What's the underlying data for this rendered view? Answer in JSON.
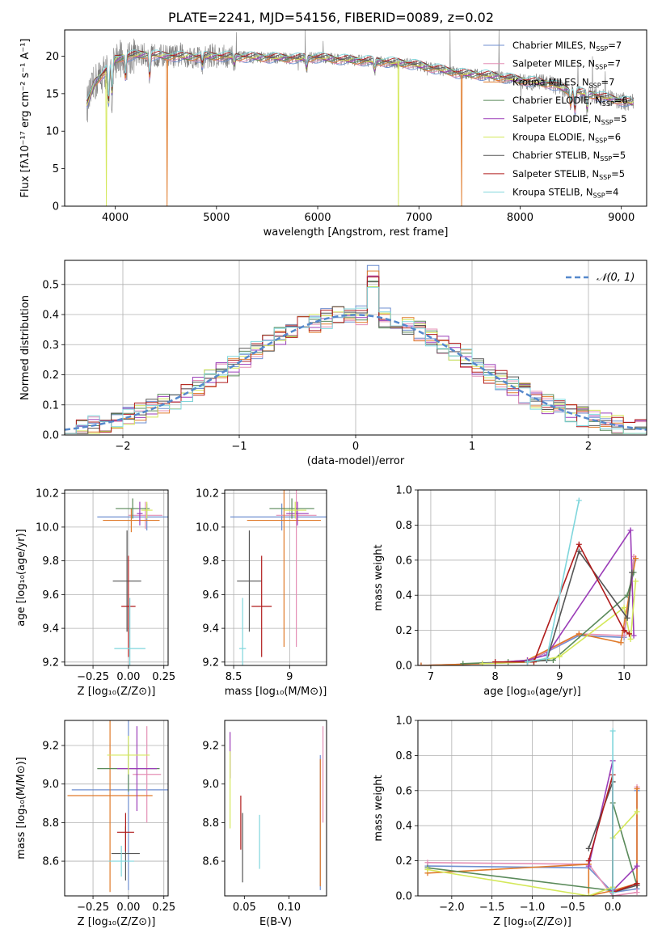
{
  "title": "PLATE=2241, MJD=54156, FIBERID=0089, z=0.02",
  "colors": {
    "Chabrier MILES": "#6f8fd0",
    "Salpeter MILES": "#e48fb5",
    "Kroupa MILES": "#e07b2b",
    "Chabrier ELODIE": "#5a8a5a",
    "Salpeter ELODIE": "#9b3db8",
    "Kroupa ELODIE": "#d4e85a",
    "Chabrier STELIB": "#555555",
    "Salpeter STELIB": "#b01c1c",
    "Kroupa STELIB": "#7fd6dc",
    "normal_curve": "#5588cc",
    "spectrum_data": "#7f7f7f"
  },
  "chart_data": [
    {
      "id": "spectrum",
      "type": "line",
      "xlabel": "wavelength [Angstrom, rest frame]",
      "ylabel": "Flux [fλ10⁻¹⁷ erg cm⁻² s⁻¹ A⁻¹]",
      "xlim": [
        3500,
        9250
      ],
      "ylim": [
        0,
        23.5
      ],
      "xticks": [
        4000,
        5000,
        6000,
        7000,
        8000,
        9000
      ],
      "yticks": [
        0,
        5,
        10,
        15,
        20
      ],
      "grid": false,
      "legend_position": "top-right",
      "legend": [
        {
          "label": "Chabrier MILES, N_SSP=7",
          "text": "Chabrier MILES, N",
          "sub": "SSP",
          "tail": "=7",
          "model": "Chabrier MILES"
        },
        {
          "label": "Salpeter MILES, N_SSP=7",
          "text": "Salpeter MILES, N",
          "sub": "SSP",
          "tail": "=7",
          "model": "Salpeter MILES"
        },
        {
          "label": "Kroupa MILES, N_SSP=7",
          "text": "Kroupa MILES, N",
          "sub": "SSP",
          "tail": "=7",
          "model": "Kroupa MILES"
        },
        {
          "label": "Chabrier ELODIE, N_SSP=6",
          "text": "Chabrier ELODIE, N",
          "sub": "SSP",
          "tail": "=6",
          "model": "Chabrier ELODIE"
        },
        {
          "label": "Salpeter ELODIE, N_SSP=5",
          "text": "Salpeter ELODIE, N",
          "sub": "SSP",
          "tail": "=5",
          "model": "Salpeter ELODIE"
        },
        {
          "label": "Kroupa ELODIE, N_SSP=6",
          "text": "Kroupa ELODIE, N",
          "sub": "SSP",
          "tail": "=6",
          "model": "Kroupa ELODIE"
        },
        {
          "label": "Chabrier STELIB, N_SSP=5",
          "text": "Chabrier STELIB, N",
          "sub": "SSP",
          "tail": "=5",
          "model": "Chabrier STELIB"
        },
        {
          "label": "Salpeter STELIB, N_SSP=5",
          "text": "Salpeter STELIB, N",
          "sub": "SSP",
          "tail": "=5",
          "model": "Salpeter STELIB"
        },
        {
          "label": "Kroupa STELIB, N_SSP=4",
          "text": "Kroupa STELIB, N",
          "sub": "SSP",
          "tail": "=4",
          "model": "Kroupa STELIB"
        }
      ],
      "continuum": {
        "x": [
          3720,
          3800,
          3900,
          4000,
          4100,
          4300,
          4500,
          4800,
          5000,
          5200,
          5500,
          5800,
          6000,
          6300,
          6600,
          6900,
          7100,
          7400,
          7700,
          8000,
          8300,
          8500,
          8700,
          8900,
          9100
        ],
        "y": [
          13.5,
          16.5,
          18.0,
          19.5,
          20.0,
          20.2,
          20.0,
          19.9,
          20.0,
          19.9,
          19.8,
          19.7,
          19.8,
          19.5,
          19.3,
          19.0,
          18.5,
          17.7,
          17.4,
          16.8,
          16.3,
          15.3,
          14.9,
          14.3,
          13.8
        ]
      },
      "absorption_lines": [
        {
          "x": 3934,
          "depth": 6.0
        },
        {
          "x": 3968,
          "depth": 5.0
        },
        {
          "x": 4101,
          "depth": 3.5
        },
        {
          "x": 4340,
          "depth": 3.5
        },
        {
          "x": 4861,
          "depth": 1.5
        },
        {
          "x": 5175,
          "depth": 1.2
        },
        {
          "x": 5890,
          "depth": 1.5
        },
        {
          "x": 6563,
          "depth": 1.5
        },
        {
          "x": 8498,
          "depth": 2.0
        },
        {
          "x": 8542,
          "depth": 3.0
        },
        {
          "x": 8662,
          "depth": 2.5
        }
      ],
      "dropouts": [
        {
          "x": 3910,
          "model": "Kroupa ELODIE"
        },
        {
          "x": 4510,
          "model": "Kroupa MILES"
        },
        {
          "x": 6800,
          "model": "Kroupa ELODIE"
        },
        {
          "x": 7420,
          "model": "Kroupa MILES"
        }
      ]
    },
    {
      "id": "residual_hist",
      "type": "histogram",
      "xlabel": "(data-model)/error",
      "ylabel": "Normed distribution",
      "xlim": [
        -2.5,
        2.5
      ],
      "ylim": [
        0,
        0.58
      ],
      "xticks": [
        -2,
        -1,
        0,
        1,
        2
      ],
      "yticks": [
        0.0,
        0.1,
        0.2,
        0.3,
        0.4,
        0.5
      ],
      "grid": true,
      "legend_position": "top-right",
      "reference_curve": {
        "label": "𝒩(0, 1)",
        "mean": 0,
        "sigma": 1
      },
      "bin_width": 0.1,
      "bins_from": -2.5,
      "num_bins": 50
    },
    {
      "id": "age_vs_Z",
      "type": "errorbar",
      "xlabel": "Z [log₁₀(Z/Z⊙)]",
      "ylabel": "age  [log₁₀(age/yr)]",
      "xlim": [
        -0.45,
        0.28
      ],
      "ylim": [
        9.18,
        10.22
      ],
      "xticks": [
        -0.25,
        0.0,
        0.25
      ],
      "xticklabels": [
        "−0.25",
        "0.00",
        "0.25"
      ],
      "yticks": [
        9.2,
        9.4,
        9.6,
        9.8,
        10.0,
        10.2
      ],
      "grid": true,
      "points": [
        {
          "model": "Chabrier MILES",
          "x": 0.13,
          "xerr": 0.35,
          "y": 10.06,
          "yerr": 0.08
        },
        {
          "model": "Salpeter MILES",
          "x": 0.12,
          "xerr": 0.12,
          "y": 10.07,
          "yerr": 0.08
        },
        {
          "model": "Kroupa MILES",
          "x": 0.02,
          "xerr": 0.2,
          "y": 10.04,
          "yerr": 0.07
        },
        {
          "model": "Chabrier ELODIE",
          "x": 0.03,
          "xerr": 0.12,
          "y": 10.11,
          "yerr": 0.06
        },
        {
          "model": "Salpeter ELODIE",
          "x": 0.08,
          "xerr": 0.02,
          "y": 10.08,
          "yerr": 0.07
        },
        {
          "model": "Kroupa ELODIE",
          "x": 0.13,
          "xerr": 0.04,
          "y": 10.1,
          "yerr": 0.05
        },
        {
          "model": "Chabrier STELIB",
          "x": -0.01,
          "xerr": 0.1,
          "y": 9.68,
          "yerr": 0.3
        },
        {
          "model": "Salpeter STELIB",
          "x": 0.0,
          "xerr": 0.05,
          "y": 9.53,
          "yerr": 0.3
        },
        {
          "model": "Kroupa STELIB",
          "x": 0.01,
          "xerr": 0.11,
          "y": 9.28,
          "yerr": 0.3
        }
      ]
    },
    {
      "id": "age_vs_mass",
      "type": "errorbar",
      "xlabel": "mass [log₁₀(M/M⊙)]",
      "ylabel": "",
      "xlim": [
        8.42,
        9.33
      ],
      "ylim": [
        9.18,
        10.22
      ],
      "xticks": [
        8.5,
        9.0
      ],
      "yticks": [
        9.2,
        9.4,
        9.6,
        9.8,
        10.0,
        10.2
      ],
      "grid": true,
      "points": [
        {
          "model": "Chabrier MILES",
          "x": 8.93,
          "xerr": 0.46,
          "y": 10.06,
          "yerr": 0.08
        },
        {
          "model": "Salpeter MILES",
          "x": 9.06,
          "xerr": 0.18,
          "y": 10.07,
          "yerr": 0.78
        },
        {
          "model": "Kroupa MILES",
          "x": 8.95,
          "xerr": 0.33,
          "y": 10.04,
          "yerr": 0.75
        },
        {
          "model": "Chabrier ELODIE",
          "x": 9.02,
          "xerr": 0.2,
          "y": 10.11,
          "yerr": 0.06
        },
        {
          "model": "Salpeter ELODIE",
          "x": 9.07,
          "xerr": 0.1,
          "y": 10.08,
          "yerr": 0.07
        },
        {
          "model": "Kroupa ELODIE",
          "x": 9.05,
          "xerr": 0.1,
          "y": 10.1,
          "yerr": 0.05
        },
        {
          "model": "Chabrier STELIB",
          "x": 8.64,
          "xerr": 0.11,
          "y": 9.68,
          "yerr": 0.3
        },
        {
          "model": "Salpeter STELIB",
          "x": 8.75,
          "xerr": 0.09,
          "y": 9.53,
          "yerr": 0.3
        },
        {
          "model": "Kroupa STELIB",
          "x": 8.58,
          "xerr": 0.03,
          "y": 9.28,
          "yerr": 0.3
        }
      ]
    },
    {
      "id": "weight_vs_age",
      "type": "line",
      "xlabel": "age  [log₁₀(age/yr)]",
      "ylabel": "mass weight",
      "xlim": [
        6.8,
        10.35
      ],
      "ylim": [
        0,
        1.0
      ],
      "xticks": [
        7,
        8,
        9,
        10
      ],
      "yticks": [
        0.0,
        0.2,
        0.4,
        0.6,
        0.8,
        1.0
      ],
      "grid": true,
      "series": [
        {
          "model": "Chabrier MILES",
          "x": [
            6.85,
            7.8,
            8.5,
            9.3,
            10.0,
            10.15
          ],
          "y": [
            0.0,
            0.01,
            0.02,
            0.17,
            0.16,
            0.6
          ]
        },
        {
          "model": "Salpeter MILES",
          "x": [
            6.85,
            7.8,
            8.5,
            9.3,
            10.0,
            10.15
          ],
          "y": [
            0.0,
            0.01,
            0.02,
            0.18,
            0.17,
            0.62
          ]
        },
        {
          "model": "Kroupa MILES",
          "x": [
            6.85,
            7.8,
            8.5,
            9.3,
            9.95,
            10.18
          ],
          "y": [
            0.0,
            0.01,
            0.03,
            0.18,
            0.13,
            0.61
          ]
        },
        {
          "model": "Chabrier ELODIE",
          "x": [
            7.5,
            8.2,
            8.9,
            10.05,
            10.15
          ],
          "y": [
            0.01,
            0.02,
            0.03,
            0.4,
            0.53
          ]
        },
        {
          "model": "Salpeter ELODIE",
          "x": [
            7.8,
            8.5,
            8.8,
            10.1,
            10.15
          ],
          "y": [
            0.01,
            0.03,
            0.06,
            0.77,
            0.17
          ]
        },
        {
          "model": "Kroupa ELODIE",
          "x": [
            7.8,
            8.6,
            9.0,
            10.0,
            10.1,
            10.18
          ],
          "y": [
            0.01,
            0.02,
            0.05,
            0.33,
            0.15,
            0.48
          ]
        },
        {
          "model": "Chabrier STELIB",
          "x": [
            8.5,
            8.8,
            9.3,
            10.05,
            10.12
          ],
          "y": [
            0.02,
            0.03,
            0.65,
            0.27,
            0.53
          ]
        },
        {
          "model": "Salpeter STELIB",
          "x": [
            8.0,
            8.6,
            9.3,
            10.0,
            10.08
          ],
          "y": [
            0.02,
            0.02,
            0.69,
            0.2,
            0.18
          ]
        },
        {
          "model": "Kroupa STELIB",
          "x": [
            8.5,
            8.8,
            9.3
          ],
          "y": [
            0.02,
            0.04,
            0.94
          ]
        }
      ]
    },
    {
      "id": "mass_vs_Z",
      "type": "errorbar",
      "xlabel": "Z [log₁₀(Z/Z⊙)]",
      "ylabel": "mass [log₁₀(M/M⊙)]",
      "xlim": [
        -0.45,
        0.28
      ],
      "ylim": [
        8.42,
        9.33
      ],
      "xticks": [
        -0.25,
        0.0,
        0.25
      ],
      "xticklabels": [
        "−0.25",
        "0.00",
        "0.25"
      ],
      "yticks": [
        8.6,
        8.8,
        9.0,
        9.2
      ],
      "grid": true,
      "points": [
        {
          "model": "Chabrier MILES",
          "x": 0.0,
          "xerr": 0.4,
          "y": 8.97,
          "yerr": 0.52
        },
        {
          "model": "Salpeter MILES",
          "x": 0.13,
          "xerr": 0.1,
          "y": 9.05,
          "yerr": 0.25
        },
        {
          "model": "Kroupa MILES",
          "x": -0.13,
          "xerr": 0.3,
          "y": 8.94,
          "yerr": 0.5
        },
        {
          "model": "Chabrier ELODIE",
          "x": 0.0,
          "xerr": 0.22,
          "y": 9.08,
          "yerr": 0.12
        },
        {
          "model": "Salpeter ELODIE",
          "x": 0.06,
          "xerr": 0.14,
          "y": 9.08,
          "yerr": 0.22
        },
        {
          "model": "Kroupa ELODIE",
          "x": 0.0,
          "xerr": 0.15,
          "y": 9.15,
          "yerr": 0.1
        },
        {
          "model": "Chabrier STELIB",
          "x": -0.02,
          "xerr": 0.1,
          "y": 8.64,
          "yerr": 0.14
        },
        {
          "model": "Salpeter STELIB",
          "x": -0.02,
          "xerr": 0.06,
          "y": 8.75,
          "yerr": 0.1
        },
        {
          "model": "Kroupa STELIB",
          "x": -0.05,
          "xerr": 0.09,
          "y": 8.6,
          "yerr": 0.08
        }
      ]
    },
    {
      "id": "mass_vs_EBV",
      "type": "errorbar",
      "xlabel": "E(B-V)",
      "ylabel": "",
      "xlim": [
        0.028,
        0.142
      ],
      "ylim": [
        8.42,
        9.33
      ],
      "xticks": [
        0.05,
        0.1
      ],
      "xticklabels": [
        "0.05",
        "0.10"
      ],
      "yticks": [
        8.6,
        8.8,
        9.0,
        9.2
      ],
      "grid": false,
      "points": [
        {
          "model": "Salpeter ELODIE",
          "x": 0.034,
          "xerr": 0.0,
          "y": 9.15,
          "yerr": 0.12
        },
        {
          "model": "Kroupa ELODIE",
          "x": 0.034,
          "xerr": 0.0,
          "y": 8.97,
          "yerr": 0.2
        },
        {
          "model": "Salpeter STELIB",
          "x": 0.046,
          "xerr": 0.0,
          "y": 8.8,
          "yerr": 0.14
        },
        {
          "model": "Chabrier STELIB",
          "x": 0.048,
          "xerr": 0.0,
          "y": 8.67,
          "yerr": 0.18
        },
        {
          "model": "Kroupa STELIB",
          "x": 0.067,
          "xerr": 0.0,
          "y": 8.7,
          "yerr": 0.14
        },
        {
          "model": "Chabrier MILES",
          "x": 0.135,
          "xerr": 0.0,
          "y": 8.8,
          "yerr": 0.35
        },
        {
          "model": "Kroupa MILES",
          "x": 0.135,
          "xerr": 0.0,
          "y": 8.8,
          "yerr": 0.33
        },
        {
          "model": "Salpeter MILES",
          "x": 0.138,
          "xerr": 0.0,
          "y": 9.05,
          "yerr": 0.25
        }
      ]
    },
    {
      "id": "weight_vs_Z",
      "type": "line",
      "xlabel": "Z [log₁₀(Z/Z⊙)]",
      "ylabel": "mass weight",
      "xlim": [
        -2.42,
        0.42
      ],
      "ylim": [
        0,
        1.0
      ],
      "xticks": [
        -2.0,
        -1.5,
        -1.0,
        -0.5,
        0.0
      ],
      "xticklabels": [
        "−2.0",
        "−1.5",
        "−1.0",
        "−0.5",
        "0.0"
      ],
      "yticks": [
        0.0,
        0.2,
        0.4,
        0.6,
        0.8,
        1.0
      ],
      "grid": true,
      "series": [
        {
          "model": "Chabrier MILES",
          "x": [
            -2.3,
            -0.3,
            0.0,
            0.3,
            0.3
          ],
          "y": [
            0.17,
            0.16,
            0.02,
            0.04,
            0.6
          ]
        },
        {
          "model": "Salpeter MILES",
          "x": [
            -2.3,
            -0.3,
            0.0,
            0.3,
            0.3
          ],
          "y": [
            0.19,
            0.18,
            0.0,
            0.02,
            0.62
          ]
        },
        {
          "model": "Kroupa MILES",
          "x": [
            -2.3,
            -0.3,
            -0.3,
            0.0,
            0.3,
            0.3
          ],
          "y": [
            0.13,
            0.18,
            0.0,
            0.03,
            0.07,
            0.61
          ]
        },
        {
          "model": "Chabrier ELODIE",
          "x": [
            -2.3,
            0.0,
            0.0,
            0.3
          ],
          "y": [
            0.16,
            0.03,
            0.53,
            0.06
          ]
        },
        {
          "model": "Salpeter ELODIE",
          "x": [
            -0.3,
            0.0,
            0.0,
            0.3
          ],
          "y": [
            0.17,
            0.77,
            0.03,
            0.17
          ]
        },
        {
          "model": "Kroupa ELODIE",
          "x": [
            -2.3,
            -0.3,
            0.0,
            0.0,
            0.3
          ],
          "y": [
            0.15,
            0.0,
            0.05,
            0.33,
            0.48
          ]
        },
        {
          "model": "Chabrier STELIB",
          "x": [
            -0.3,
            0.0,
            0.0,
            0.3
          ],
          "y": [
            0.27,
            0.65,
            0.02,
            0.06
          ]
        },
        {
          "model": "Salpeter STELIB",
          "x": [
            -0.3,
            0.0,
            0.0,
            0.3
          ],
          "y": [
            0.2,
            0.69,
            0.02,
            0.07
          ]
        },
        {
          "model": "Kroupa STELIB",
          "x": [
            0.0,
            0.0,
            0.0
          ],
          "y": [
            0.94,
            0.04,
            0.02
          ]
        }
      ]
    }
  ]
}
